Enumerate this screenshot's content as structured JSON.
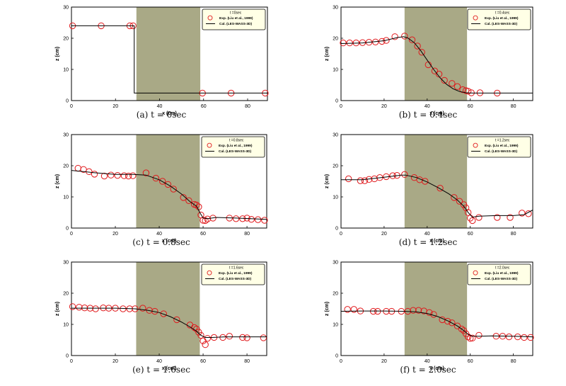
{
  "colors": {
    "porous_fill": "#a9a986",
    "marker": "#e0191c",
    "line": "#000000",
    "legend_fill": "#ffffe6"
  },
  "chart_data": [
    {
      "type": "scatter",
      "caption": "(a) t = 0sec",
      "time_label": "t =0sec",
      "xlabel": "x (cm)",
      "ylabel": "z (cm)",
      "xlim": [
        0,
        89
      ],
      "ylim": [
        0,
        30
      ],
      "xticks": [
        0,
        20,
        40,
        60,
        80
      ],
      "yticks": [
        0,
        10,
        20,
        30
      ],
      "porous_region": [
        29.5,
        58.5
      ],
      "legend_position": "top-right",
      "series": [
        {
          "name": "Exp. (Liu et al., 1999)",
          "kind": "markers",
          "x": [
            0.5,
            13.5,
            26.5,
            28.0,
            59.5,
            72.5,
            88.0
          ],
          "y": [
            24,
            24,
            24,
            24,
            2.4,
            2.4,
            2.4
          ]
        },
        {
          "name": "Cal. (LES-WASS-3D)",
          "kind": "line",
          "x": [
            0,
            28.5,
            28.5,
            89
          ],
          "y": [
            24,
            24,
            2.4,
            2.4
          ]
        }
      ]
    },
    {
      "type": "scatter",
      "caption": "(b) t = 0.4sec",
      "time_label": "t =0.4sec",
      "xlabel": "x (cm)",
      "ylabel": "z (cm)",
      "xlim": [
        0,
        89
      ],
      "ylim": [
        0,
        30
      ],
      "xticks": [
        0,
        20,
        40,
        60,
        80
      ],
      "yticks": [
        0,
        10,
        20,
        30
      ],
      "porous_region": [
        29.5,
        58.5
      ],
      "legend_position": "top-right",
      "series": [
        {
          "name": "Exp. (Liu et al., 1999)",
          "kind": "markers",
          "x": [
            1,
            4,
            7,
            10,
            13,
            16,
            19,
            21,
            25,
            29.5,
            33,
            35.5,
            37.5,
            40.5,
            43.5,
            45.5,
            48,
            51.5,
            54,
            56.5,
            58,
            59,
            60.5,
            64.5,
            72.5
          ],
          "y": [
            18.5,
            18.5,
            18.5,
            18.6,
            18.7,
            18.8,
            19.0,
            19.3,
            20.5,
            20.7,
            19.5,
            17.5,
            15.5,
            11.5,
            9.5,
            8.5,
            6.5,
            5.5,
            4.5,
            3.5,
            3.2,
            3.0,
            2.5,
            2.5,
            2.4
          ]
        },
        {
          "name": "Cal. (LES-WASS-3D)",
          "kind": "line",
          "x": [
            0,
            10,
            20,
            26,
            29,
            31,
            34,
            37,
            40,
            43,
            46,
            49,
            52,
            55,
            58,
            61,
            65,
            75,
            89
          ],
          "y": [
            18.3,
            18.5,
            19.2,
            20.2,
            20.5,
            20.1,
            18.6,
            16.0,
            13.0,
            10.0,
            7.3,
            5.2,
            3.8,
            2.9,
            2.5,
            2.4,
            2.4,
            2.4,
            2.4
          ]
        }
      ]
    },
    {
      "type": "scatter",
      "caption": "(c) t = 0.8sec",
      "time_label": "t =0.8sec",
      "xlabel": "x (cm)",
      "ylabel": "z (cm)",
      "xlim": [
        0,
        89
      ],
      "ylim": [
        0,
        30
      ],
      "xticks": [
        0,
        20,
        40,
        60,
        80
      ],
      "yticks": [
        0,
        10,
        20,
        30
      ],
      "porous_region": [
        29.5,
        58.5
      ],
      "legend_position": "top-right",
      "series": [
        {
          "name": "Exp. (Liu et al., 1999)",
          "kind": "markers",
          "x": [
            3,
            5.5,
            8,
            10.5,
            15,
            18,
            21,
            24,
            26,
            28,
            34,
            38.5,
            41.5,
            44,
            46.5,
            51,
            53.5,
            56,
            57,
            58,
            59,
            60,
            61,
            62,
            64.5,
            72,
            75,
            78,
            80,
            82,
            85,
            88
          ],
          "y": [
            19.2,
            18.8,
            18.1,
            17.3,
            16.7,
            17.0,
            16.9,
            16.8,
            16.7,
            16.8,
            17.7,
            16.0,
            15.0,
            14.0,
            12.5,
            9.8,
            8.8,
            7.6,
            7.4,
            6.8,
            4.2,
            2.5,
            2.4,
            2.9,
            3.2,
            3.2,
            3.0,
            3.0,
            3.2,
            2.8,
            2.7,
            2.5
          ]
        },
        {
          "name": "Cal. (LES-WASS-3D)",
          "kind": "line",
          "x": [
            0,
            10,
            20,
            28,
            34,
            40,
            45,
            50,
            54,
            57,
            58.5,
            60,
            62,
            66,
            75,
            89
          ],
          "y": [
            18.5,
            17.8,
            17.2,
            17.2,
            17.0,
            15.5,
            13.5,
            11.0,
            8.5,
            7.0,
            5.0,
            3.2,
            3.0,
            3.4,
            3.2,
            2.8
          ]
        }
      ]
    },
    {
      "type": "scatter",
      "caption": "(d) t = 1.2sec",
      "time_label": "t =1.2sec",
      "xlabel": "x (cm)",
      "ylabel": "z (cm)",
      "xlim": [
        0,
        89
      ],
      "ylim": [
        0,
        30
      ],
      "xticks": [
        0,
        20,
        40,
        60,
        80
      ],
      "yticks": [
        0,
        10,
        20,
        30
      ],
      "porous_region": [
        29.5,
        58.5
      ],
      "legend_position": "top-right",
      "series": [
        {
          "name": "Exp. (Liu et al., 1999)",
          "kind": "markers",
          "x": [
            3.5,
            9,
            11,
            13,
            15.5,
            18,
            21,
            24,
            26,
            29.5,
            34,
            36.5,
            39,
            46,
            52.5,
            55,
            57,
            58,
            59,
            60,
            61,
            64,
            72.5,
            78.5,
            84,
            87
          ],
          "y": [
            15.8,
            15.2,
            15.2,
            15.6,
            15.8,
            16.2,
            16.5,
            16.8,
            16.9,
            17.2,
            16.2,
            15.5,
            15.0,
            12.8,
            9.8,
            8.6,
            7.5,
            6.5,
            5.0,
            3.2,
            2.4,
            3.4,
            3.4,
            3.4,
            4.8,
            4.6
          ]
        },
        {
          "name": "Cal. (LES-WASS-3D)",
          "kind": "line",
          "x": [
            0,
            10,
            20,
            28,
            30,
            35,
            40,
            45,
            50,
            54,
            57,
            59,
            61,
            64,
            72,
            80,
            85,
            89
          ],
          "y": [
            15.5,
            15.5,
            16.3,
            17.0,
            17.0,
            16.2,
            14.8,
            13.0,
            11.0,
            9.0,
            7.0,
            5.0,
            3.5,
            3.8,
            4.0,
            4.0,
            4.3,
            5.8
          ]
        }
      ]
    },
    {
      "type": "scatter",
      "caption": "(e) t = 1.6sec",
      "time_label": "t =1.6sec",
      "xlabel": "x (cm)",
      "ylabel": "z (cm)",
      "xlim": [
        0,
        89
      ],
      "ylim": [
        0,
        30
      ],
      "xticks": [
        0,
        20,
        40,
        60,
        80
      ],
      "yticks": [
        0,
        10,
        20,
        30
      ],
      "porous_region": [
        29.5,
        58.5
      ],
      "legend_position": "top-right",
      "series": [
        {
          "name": "Exp. (Liu et al., 1999)",
          "kind": "markers",
          "x": [
            0.5,
            3.5,
            6,
            8.5,
            11,
            14.5,
            17,
            20,
            23.5,
            26.5,
            29,
            32.5,
            35.5,
            38,
            42,
            48,
            54,
            56,
            57,
            58,
            59,
            60,
            61,
            62,
            65,
            69,
            72,
            78,
            80,
            87.5
          ],
          "y": [
            15.7,
            15.5,
            15.3,
            15.2,
            15.0,
            15.3,
            15.2,
            15.2,
            15.0,
            15.0,
            15.0,
            15.2,
            14.5,
            14.2,
            13.4,
            11.5,
            9.8,
            9.0,
            8.5,
            7.5,
            6.5,
            4.7,
            3.5,
            5.5,
            5.8,
            5.8,
            6.2,
            5.8,
            5.7,
            5.7
          ]
        },
        {
          "name": "Cal. (LES-WASS-3D)",
          "kind": "line",
          "x": [
            0,
            10,
            20,
            29,
            35,
            40,
            45,
            50,
            54,
            57,
            59,
            61,
            64,
            70,
            80,
            89
          ],
          "y": [
            15.2,
            15.2,
            15.2,
            15.0,
            14.5,
            13.8,
            12.5,
            10.8,
            9.2,
            7.8,
            6.5,
            5.8,
            5.8,
            6.0,
            6.0,
            6.0
          ]
        }
      ]
    },
    {
      "type": "scatter",
      "caption": "(f) t = 2.0sec",
      "time_label": "t =2.0sec",
      "xlabel": "x (cm)",
      "ylabel": "z (cm)",
      "xlim": [
        0,
        89
      ],
      "ylim": [
        0,
        30
      ],
      "xticks": [
        0,
        20,
        40,
        60,
        80
      ],
      "yticks": [
        0,
        10,
        20,
        30
      ],
      "porous_region": [
        29.5,
        58.5
      ],
      "legend_position": "top-right",
      "series": [
        {
          "name": "Exp. (Liu et al., 1999)",
          "kind": "markers",
          "x": [
            3,
            6,
            9,
            15,
            17,
            21,
            23.5,
            28,
            31,
            33.5,
            36,
            38.5,
            41,
            43,
            47,
            49.5,
            51.5,
            54,
            56,
            57,
            58,
            59,
            60,
            61,
            64,
            72,
            75,
            78,
            82,
            85,
            88
          ],
          "y": [
            14.8,
            14.8,
            14.3,
            14.2,
            14.2,
            14.2,
            14.2,
            14.2,
            14.2,
            14.5,
            14.5,
            14.3,
            13.8,
            13.2,
            11.5,
            11.0,
            10.5,
            9.5,
            8.5,
            8.0,
            7.0,
            6.0,
            5.5,
            5.6,
            6.5,
            6.2,
            6.2,
            6.0,
            6.0,
            5.8,
            5.8
          ]
        },
        {
          "name": "Cal. (LES-WASS-3D)",
          "kind": "line",
          "x": [
            0,
            10,
            20,
            29,
            35,
            40,
            45,
            50,
            54,
            57,
            59,
            61,
            64,
            70,
            80,
            89
          ],
          "y": [
            14.2,
            14.3,
            14.3,
            14.2,
            14.0,
            13.5,
            12.5,
            11.0,
            9.5,
            8.0,
            6.8,
            6.2,
            6.2,
            6.3,
            6.2,
            6.0
          ]
        }
      ]
    }
  ]
}
